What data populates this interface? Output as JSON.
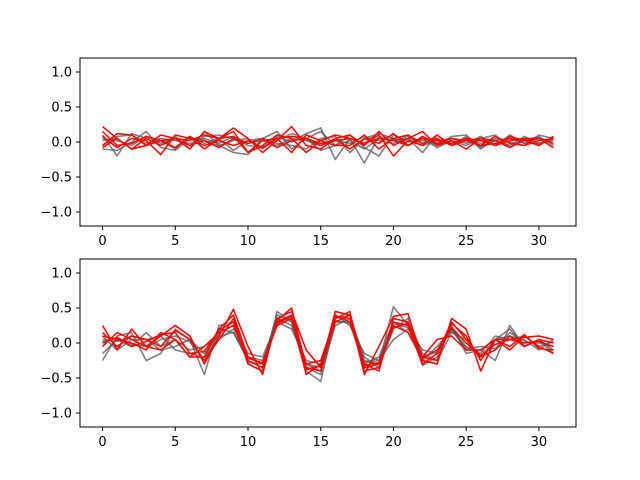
{
  "colors": {
    "gray": "#555555",
    "red": "#ff0000",
    "axes": "#000000",
    "background": "#ffffff"
  },
  "chart_data": [
    {
      "type": "line",
      "xlim": [
        -1.55,
        32.55
      ],
      "ylim": [
        -1.2,
        1.2
      ],
      "xticks": [
        0,
        5,
        10,
        15,
        20,
        25,
        30
      ],
      "yticks": [
        -1.0,
        -0.5,
        0.0,
        0.5,
        1.0
      ],
      "xtick_labels": [
        "0",
        "5",
        "10",
        "15",
        "20",
        "25",
        "30"
      ],
      "ytick_labels": [
        "−1.0",
        "−0.5",
        "0.0",
        "0.5",
        "1.0"
      ],
      "grid": false,
      "x": [
        0,
        1,
        2,
        3,
        4,
        5,
        6,
        7,
        8,
        9,
        10,
        11,
        12,
        13,
        14,
        15,
        16,
        17,
        18,
        19,
        20,
        21,
        22,
        23,
        24,
        25,
        26,
        27,
        28,
        29,
        30,
        31
      ],
      "series": [
        {
          "color": "gray",
          "values": [
            0.1,
            -0.2,
            0.12,
            0.05,
            -0.05,
            0.08,
            -0.1,
            0.15,
            -0.05,
            0.02,
            0.05,
            -0.1,
            0.08,
            0.0,
            0.12,
            0.2,
            -0.25,
            0.05,
            -0.3,
            0.08,
            0.02,
            0.05,
            -0.15,
            0.1,
            -0.05,
            0.08,
            -0.1,
            0.05,
            0.0,
            -0.05,
            0.1,
            0.05
          ]
        },
        {
          "color": "gray",
          "values": [
            -0.1,
            -0.12,
            0.0,
            0.15,
            -0.08,
            -0.12,
            0.05,
            0.02,
            -0.05,
            -0.15,
            -0.18,
            0.05,
            0.15,
            -0.1,
            0.05,
            0.15,
            -0.05,
            0.1,
            -0.08,
            -0.2,
            0.1,
            0.0,
            0.05,
            -0.05,
            0.08,
            0.1,
            -0.08,
            0.02,
            -0.05,
            0.08,
            -0.02,
            0.05
          ]
        },
        {
          "color": "gray",
          "values": [
            0.05,
            0.02,
            -0.05,
            0.08,
            -0.02,
            0.05,
            -0.05,
            0.08,
            0.1,
            0.05,
            -0.05,
            -0.08,
            0.02,
            0.12,
            0.05,
            -0.12,
            -0.05,
            0.02,
            -0.1,
            0.05,
            0.02,
            0.08,
            -0.05,
            0.02,
            0.05,
            -0.02,
            0.08,
            -0.05,
            0.1,
            -0.02,
            0.05,
            0.02
          ]
        },
        {
          "color": "gray",
          "values": [
            0.02,
            0.05,
            -0.1,
            -0.05,
            0.02,
            -0.1,
            0.08,
            -0.02,
            0.05,
            -0.12,
            0.02,
            0.05,
            -0.02,
            -0.05,
            -0.1,
            0.05,
            0.08,
            -0.15,
            0.05,
            0.12,
            0.05,
            -0.05,
            0.05,
            -0.08,
            0.02,
            -0.05,
            0.05,
            0.1,
            -0.08,
            0.02,
            0.08,
            -0.05
          ]
        },
        {
          "color": "gray",
          "values": [
            -0.05,
            0.08,
            0.1,
            -0.02,
            0.05,
            0.02,
            -0.02,
            0.05,
            -0.02,
            0.08,
            -0.02,
            0.02,
            -0.05,
            0.05,
            0.02,
            -0.05,
            0.02,
            -0.02,
            0.08,
            0.02,
            -0.02,
            0.05,
            0.02,
            -0.02,
            -0.02,
            0.05,
            -0.02,
            0.02,
            0.05,
            -0.02,
            -0.02,
            0.02
          ]
        },
        {
          "color": "red",
          "values": [
            0.22,
            0.05,
            -0.1,
            0.05,
            -0.05,
            0.05,
            0.02,
            0.1,
            0.05,
            0.2,
            0.05,
            -0.15,
            0.02,
            0.22,
            -0.05,
            -0.1,
            0.05,
            0.1,
            -0.05,
            0.15,
            -0.05,
            0.05,
            0.15,
            -0.05,
            0.02,
            -0.1,
            0.05,
            0.02,
            -0.08,
            0.05,
            -0.05,
            0.08
          ]
        },
        {
          "color": "red",
          "values": [
            -0.05,
            0.12,
            0.1,
            -0.05,
            0.1,
            0.05,
            -0.1,
            0.15,
            0.05,
            0.08,
            -0.15,
            -0.05,
            0.1,
            0.05,
            -0.15,
            0.02,
            0.1,
            0.05,
            -0.02,
            0.1,
            -0.2,
            0.02,
            -0.05,
            0.1,
            -0.05,
            0.05,
            0.02,
            -0.05,
            0.08,
            0.02,
            -0.05,
            0.08
          ]
        },
        {
          "color": "red",
          "values": [
            0.08,
            -0.08,
            0.05,
            0.02,
            -0.18,
            0.1,
            0.05,
            -0.05,
            0.02,
            -0.05,
            0.02,
            -0.08,
            0.05,
            -0.15,
            0.1,
            0.02,
            -0.05,
            -0.05,
            0.1,
            -0.1,
            0.05,
            0.1,
            -0.02,
            0.05,
            -0.05,
            0.02,
            0.05,
            -0.05,
            0.02,
            0.05,
            0.05,
            -0.08
          ]
        },
        {
          "color": "red",
          "values": [
            0.15,
            -0.05,
            -0.02,
            0.08,
            0.02,
            -0.08,
            0.08,
            -0.1,
            0.05,
            0.15,
            -0.15,
            0.02,
            0.05,
            0.08,
            0.05,
            -0.05,
            0.05,
            -0.1,
            0.05,
            -0.02,
            0.12,
            -0.05,
            0.08,
            -0.02,
            0.05,
            0.02,
            -0.05,
            0.08,
            -0.02,
            -0.05,
            0.02,
            0.05
          ]
        },
        {
          "color": "red",
          "values": [
            -0.08,
            0.05,
            -0.1,
            -0.05,
            0.02,
            0.05,
            -0.05,
            0.02,
            -0.08,
            0.05,
            -0.02,
            0.05,
            -0.08,
            0.02,
            0.05,
            -0.02,
            0.02,
            0.05,
            -0.02,
            0.05,
            0.02,
            -0.05,
            0.05,
            0.02,
            -0.02,
            0.05,
            -0.05,
            -0.02,
            0.05,
            0.02,
            0.05,
            -0.02
          ]
        }
      ]
    },
    {
      "type": "line",
      "xlim": [
        -1.55,
        32.55
      ],
      "ylim": [
        -1.2,
        1.2
      ],
      "xticks": [
        0,
        5,
        10,
        15,
        20,
        25,
        30
      ],
      "yticks": [
        -1.0,
        -0.5,
        0.0,
        0.5,
        1.0
      ],
      "xtick_labels": [
        "0",
        "5",
        "10",
        "15",
        "20",
        "25",
        "30"
      ],
      "ytick_labels": [
        "−1.0",
        "−0.5",
        "0.0",
        "0.5",
        "1.0"
      ],
      "grid": false,
      "x": [
        0,
        1,
        2,
        3,
        4,
        5,
        6,
        7,
        8,
        9,
        10,
        11,
        12,
        13,
        14,
        15,
        16,
        17,
        18,
        19,
        20,
        21,
        22,
        23,
        24,
        25,
        26,
        27,
        28,
        29,
        30,
        31
      ],
      "series": [
        {
          "color": "gray",
          "values": [
            -0.25,
            0.1,
            0.15,
            -0.25,
            -0.15,
            0.2,
            0.05,
            -0.45,
            0.25,
            0.3,
            -0.3,
            -0.4,
            0.45,
            0.3,
            -0.4,
            -0.55,
            0.35,
            0.4,
            -0.25,
            -0.3,
            0.52,
            0.25,
            -0.32,
            -0.2,
            0.25,
            -0.15,
            -0.1,
            -0.25,
            0.25,
            -0.05,
            0.05,
            -0.15
          ]
        },
        {
          "color": "gray",
          "values": [
            -0.15,
            0.05,
            -0.05,
            0.15,
            -0.05,
            0.05,
            -0.1,
            -0.05,
            0.1,
            0.15,
            -0.2,
            -0.25,
            0.25,
            0.35,
            -0.35,
            -0.45,
            0.25,
            0.35,
            -0.2,
            -0.35,
            0.2,
            0.35,
            -0.15,
            -0.25,
            0.15,
            0.05,
            -0.2,
            0.05,
            0.2,
            -0.05,
            0.05,
            -0.1
          ]
        },
        {
          "color": "gray",
          "values": [
            0.05,
            0.02,
            0.1,
            0.05,
            -0.1,
            -0.05,
            0.05,
            -0.15,
            0.2,
            0.15,
            -0.25,
            -0.35,
            0.35,
            0.25,
            -0.3,
            -0.4,
            0.3,
            0.3,
            -0.3,
            -0.2,
            0.3,
            0.15,
            -0.25,
            -0.05,
            0.2,
            -0.1,
            -0.1,
            0.05,
            0.1,
            0.05,
            -0.1,
            0.05
          ]
        },
        {
          "color": "gray",
          "values": [
            0.1,
            -0.1,
            0.05,
            0.05,
            0.1,
            -0.1,
            -0.15,
            -0.2,
            0.05,
            0.2,
            -0.15,
            -0.2,
            0.3,
            0.2,
            -0.25,
            -0.3,
            0.4,
            0.25,
            -0.15,
            -0.25,
            0.05,
            0.2,
            -0.1,
            -0.15,
            0.2,
            -0.05,
            -0.15,
            0.1,
            0.05,
            0.1,
            -0.05,
            0.02
          ]
        },
        {
          "color": "gray",
          "values": [
            0.02,
            0.08,
            -0.02,
            -0.05,
            0.05,
            0.1,
            0.02,
            -0.25,
            0.15,
            0.25,
            -0.28,
            -0.3,
            0.4,
            0.32,
            -0.3,
            -0.35,
            0.32,
            0.28,
            -0.28,
            -0.25,
            0.28,
            0.22,
            -0.2,
            -0.12,
            0.18,
            -0.08,
            -0.05,
            -0.08,
            0.15,
            0.02,
            0.0,
            -0.05
          ]
        },
        {
          "color": "red",
          "values": [
            0.25,
            -0.1,
            0.2,
            -0.05,
            0.1,
            0.25,
            0.1,
            -0.3,
            0.1,
            0.48,
            -0.05,
            -0.45,
            0.35,
            0.45,
            -0.1,
            -0.35,
            0.45,
            0.4,
            -0.45,
            -0.05,
            0.38,
            0.42,
            -0.25,
            -0.3,
            0.35,
            0.2,
            -0.4,
            0.05,
            0.05,
            0.08,
            0.1,
            0.05
          ]
        },
        {
          "color": "red",
          "values": [
            -0.05,
            0.15,
            0.05,
            -0.05,
            -0.1,
            0.05,
            -0.2,
            -0.2,
            0.2,
            0.4,
            -0.2,
            -0.3,
            0.25,
            0.35,
            -0.45,
            -0.3,
            0.4,
            0.3,
            -0.35,
            -0.3,
            0.25,
            0.15,
            -0.2,
            0.05,
            0.1,
            -0.1,
            -0.1,
            0.05,
            -0.1,
            0.1,
            -0.05,
            -0.15
          ]
        },
        {
          "color": "red",
          "values": [
            0.1,
            0.05,
            0.0,
            -0.1,
            0.15,
            0.05,
            -0.2,
            -0.05,
            0.15,
            0.25,
            -0.25,
            -0.35,
            0.3,
            0.4,
            -0.3,
            -0.25,
            0.35,
            0.45,
            -0.4,
            -0.35,
            0.3,
            0.25,
            -0.3,
            -0.15,
            0.3,
            0.05,
            -0.2,
            -0.1,
            0.1,
            -0.05,
            0.05,
            0.0
          ]
        },
        {
          "color": "red",
          "values": [
            0.15,
            -0.05,
            0.1,
            0.05,
            -0.05,
            0.18,
            0.05,
            -0.25,
            0.05,
            0.35,
            -0.3,
            -0.4,
            0.32,
            0.5,
            -0.35,
            -0.4,
            0.38,
            0.35,
            -0.3,
            -0.4,
            0.35,
            0.3,
            -0.2,
            -0.25,
            0.28,
            0.1,
            -0.25,
            0.05,
            -0.05,
            0.12,
            -0.08,
            -0.1
          ]
        },
        {
          "color": "red",
          "values": [
            0.0,
            0.08,
            -0.05,
            0.02,
            0.12,
            0.15,
            -0.15,
            -0.12,
            0.18,
            0.3,
            -0.22,
            -0.28,
            0.28,
            0.38,
            -0.38,
            -0.32,
            0.3,
            0.4,
            -0.32,
            -0.28,
            0.22,
            0.28,
            -0.22,
            -0.1,
            0.22,
            0.0,
            -0.18,
            -0.02,
            0.05,
            0.0,
            0.02,
            -0.05
          ]
        }
      ]
    }
  ]
}
